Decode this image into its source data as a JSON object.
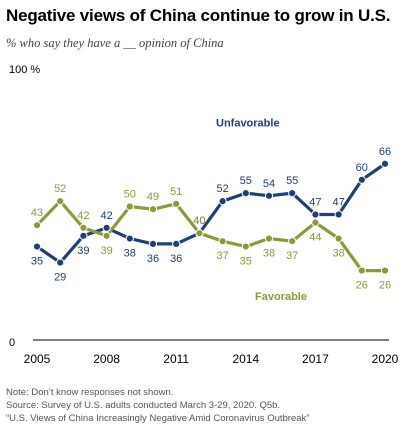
{
  "title": "Negative views of China continue to grow in U.S.",
  "subtitle": "% who say they have a __ opinion of China",
  "colors": {
    "unfavorable": "#1f3f78",
    "favorable": "#8c9a3a",
    "axis": "#000000",
    "label_text": "#555555"
  },
  "chart_data": {
    "type": "line",
    "y_axis_top_label": "100 %",
    "y_axis_zero_label": "0",
    "ylim": [
      0,
      100
    ],
    "xlim": [
      2005,
      2020
    ],
    "x_ticks": [
      "2005",
      "2008",
      "2011",
      "2014",
      "2017",
      "2020"
    ],
    "grid": false,
    "series": [
      {
        "name": "Unfavorable",
        "x": [
          2005,
          2006,
          2007,
          2008,
          2009,
          2010,
          2011,
          2012,
          2013,
          2014,
          2015,
          2016,
          2017,
          2018,
          2019,
          2020
        ],
        "values": [
          35,
          29,
          39,
          42,
          38,
          36,
          36,
          40,
          52,
          55,
          54,
          55,
          47,
          47,
          60,
          66
        ]
      },
      {
        "name": "Favorable",
        "x": [
          2005,
          2006,
          2007,
          2008,
          2009,
          2010,
          2011,
          2012,
          2013,
          2014,
          2015,
          2016,
          2017,
          2018,
          2019,
          2020
        ],
        "values": [
          43,
          52,
          42,
          39,
          50,
          49,
          51,
          40,
          37,
          35,
          38,
          37,
          44,
          38,
          26,
          26
        ]
      }
    ]
  },
  "notes": {
    "line1": "Note: Don’t know responses not shown.",
    "line2": "Source: Survey of U.S. adults conducted March 3-29, 2020. Q5b.",
    "line3": "“U.S. Views of China Increasingly Negative Amid Coronavirus Outbreak”"
  }
}
